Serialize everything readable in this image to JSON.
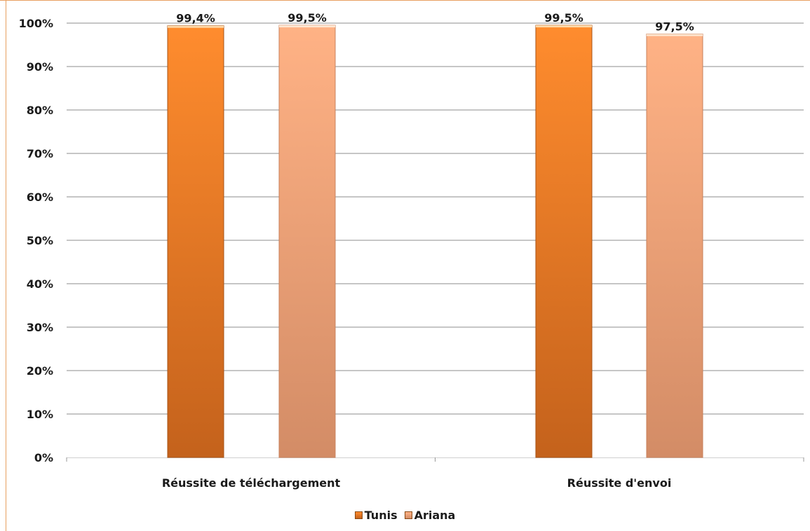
{
  "chart_data": {
    "type": "bar",
    "categories": [
      "Réussite de téléchargement",
      "Réussite d'envoi"
    ],
    "series": [
      {
        "name": "Tunis",
        "values": [
          99.4,
          99.5
        ],
        "labels": [
          "99,4%",
          "99,5%"
        ],
        "color": "#e8771e"
      },
      {
        "name": "Ariana",
        "values": [
          99.5,
          97.5
        ],
        "labels": [
          "99,5%",
          "97,5%"
        ],
        "color": "#f2a57a"
      }
    ],
    "ylim": [
      0,
      100
    ],
    "yticks": [
      "0%",
      "10%",
      "20%",
      "30%",
      "40%",
      "50%",
      "60%",
      "70%",
      "80%",
      "90%",
      "100%"
    ],
    "grid": true,
    "legend_position": "bottom",
    "title": "",
    "xlabel": "",
    "ylabel": ""
  },
  "colors": {
    "tunis_light": "#ff8c2e",
    "tunis_dark": "#c4621c",
    "ariana_light": "#ffb285",
    "ariana_dark": "#d38c66",
    "gridline": "#8c8c8c"
  }
}
